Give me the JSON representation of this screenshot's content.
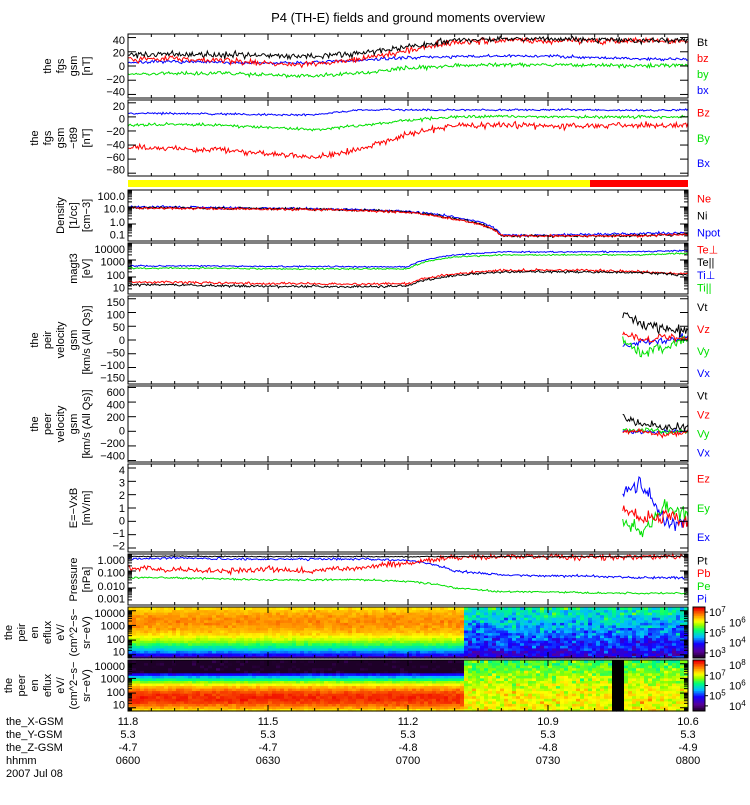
{
  "title": "P4 (TH-E) fields and ground moments overview",
  "colors": {
    "black": "#000000",
    "red": "#ff0000",
    "green": "#00e000",
    "blue": "#0000ff",
    "yellow": "#ffff00"
  },
  "xaxis": {
    "row_labels": [
      "the_X-GSM",
      "the_Y-GSM",
      "the_Z-GSM",
      "hhmm"
    ],
    "date": "2007 Jul 08",
    "ticks": [
      {
        "t": 0,
        "values": [
          "11.8",
          "5.3",
          "-4.7",
          "0600"
        ]
      },
      {
        "t": 30,
        "values": [
          "11.5",
          "5.3",
          "-4.7",
          "0630"
        ]
      },
      {
        "t": 60,
        "values": [
          "11.2",
          "5.3",
          "-4.8",
          "0700"
        ]
      },
      {
        "t": 90,
        "values": [
          "10.9",
          "5.3",
          "-4.8",
          "0730"
        ]
      },
      {
        "t": 120,
        "values": [
          "10.6",
          "5.3",
          "-4.9",
          "0800"
        ]
      }
    ],
    "range_minutes": [
      0,
      120
    ]
  },
  "chart_data": [
    {
      "id": "p1",
      "type": "line",
      "ylabel": [
        "the",
        "fgs",
        "gsm",
        "[nT]"
      ],
      "scale": "linear",
      "ylim": [
        -45,
        45
      ],
      "yticks": [
        [
          40,
          "40"
        ],
        [
          20,
          "20"
        ],
        [
          0,
          "0"
        ],
        [
          -20,
          "−20"
        ],
        [
          -40,
          "−40"
        ]
      ],
      "x": [
        0,
        10,
        20,
        30,
        40,
        50,
        60,
        70,
        80,
        90,
        100,
        110,
        120
      ],
      "series": [
        {
          "name": "bx",
          "color": "#0000ff",
          "noise": 1.5,
          "values": [
            5,
            6,
            5,
            4,
            5,
            8,
            12,
            13,
            14,
            14,
            12,
            10,
            10
          ]
        },
        {
          "name": "by",
          "color": "#00e000",
          "noise": 2,
          "values": [
            -12,
            -10,
            -10,
            -12,
            -14,
            -10,
            -3,
            1,
            2,
            2,
            1,
            0,
            2
          ]
        },
        {
          "name": "bz",
          "color": "#ff0000",
          "noise": 3,
          "values": [
            10,
            10,
            8,
            4,
            2,
            10,
            22,
            34,
            36,
            36,
            35,
            36,
            35
          ]
        },
        {
          "name": "Bt",
          "color": "#000000",
          "noise": 3,
          "values": [
            15,
            17,
            16,
            15,
            14,
            18,
            27,
            36,
            38,
            38,
            37,
            36,
            37
          ]
        }
      ],
      "legend": [
        "Bt",
        "bz",
        "by",
        "bx"
      ]
    },
    {
      "id": "p2",
      "type": "line",
      "ylabel": [
        "the",
        "fgs",
        "gsm",
        "−t89",
        "[nT]"
      ],
      "scale": "linear",
      "ylim": [
        -84,
        24
      ],
      "yticks": [
        [
          20,
          "20"
        ],
        [
          0,
          "0"
        ],
        [
          -20,
          "−20"
        ],
        [
          -40,
          "−40"
        ],
        [
          -60,
          "−60"
        ],
        [
          -80,
          "−80"
        ]
      ],
      "x": [
        0,
        10,
        20,
        30,
        40,
        50,
        60,
        70,
        80,
        90,
        100,
        110,
        120
      ],
      "series": [
        {
          "name": "Bz",
          "color": "#ff0000",
          "noise": 3,
          "values": [
            -42,
            -45,
            -47,
            -52,
            -58,
            -45,
            -25,
            -12,
            -12,
            -13,
            -13,
            -12,
            -12
          ]
        },
        {
          "name": "By",
          "color": "#00e000",
          "noise": 1.5,
          "values": [
            -12,
            -10,
            -12,
            -15,
            -18,
            -12,
            -5,
            0,
            1,
            0,
            0,
            0,
            0
          ]
        },
        {
          "name": "Bx",
          "color": "#0000ff",
          "noise": 1,
          "values": [
            5,
            5,
            4,
            3,
            3,
            10,
            10,
            10,
            10,
            10,
            10,
            9,
            10
          ]
        }
      ],
      "legend": [
        "Bz",
        "By",
        "Bx"
      ]
    },
    {
      "id": "bar",
      "type": "state-bar",
      "segments": [
        {
          "from": 0,
          "to": 99,
          "color": "#ffff00"
        },
        {
          "from": 99,
          "to": 120,
          "color": "#ff0000"
        }
      ]
    },
    {
      "id": "p4",
      "type": "line",
      "ylabel": [
        "Density",
        "[1/cc]",
        "[cm−3]"
      ],
      "scale": "log",
      "ylim": [
        0.1,
        100
      ],
      "yticks": [
        [
          100,
          "100.0"
        ],
        [
          10,
          "10.0"
        ],
        [
          1,
          "1.0"
        ],
        [
          0.1,
          "0.1"
        ]
      ],
      "x": [
        0,
        10,
        20,
        30,
        40,
        50,
        60,
        70,
        80,
        90,
        100,
        110,
        120
      ],
      "series": [
        {
          "name": "Npot",
          "color": "#0000ff",
          "noise": 0.05,
          "values": [
            10,
            10,
            9,
            8.5,
            8,
            7,
            5.5,
            2.5,
            0.22,
            0.22,
            0.25,
            0.28,
            0.3
          ]
        },
        {
          "name": "Ni",
          "color": "#000000",
          "noise": 0.05,
          "values": [
            9,
            9,
            8.5,
            8,
            7.5,
            6.5,
            5,
            2,
            0.2,
            0.2,
            0.2,
            0.2,
            0.25
          ]
        },
        {
          "name": "Ne",
          "color": "#ff0000",
          "noise": 0.05,
          "values": [
            8.5,
            8.5,
            8,
            7.5,
            7,
            6,
            4.8,
            1.8,
            0.2,
            0.2,
            0.2,
            0.2,
            0.25
          ]
        }
      ],
      "legend": [
        "Ne",
        "Ni",
        "Npot"
      ]
    },
    {
      "id": "p5",
      "type": "line",
      "ylabel": [
        "magt3",
        "[eV]"
      ],
      "scale": "log",
      "ylim": [
        10,
        10000
      ],
      "yticks": [
        [
          10000,
          "10000"
        ],
        [
          1000,
          "1000"
        ],
        [
          100,
          "100"
        ],
        [
          10,
          "10"
        ]
      ],
      "x": [
        0,
        10,
        20,
        30,
        40,
        50,
        60,
        70,
        80,
        90,
        100,
        110,
        120
      ],
      "series": [
        {
          "name": "Ti⊥",
          "color": "#0000ff",
          "noise": 0.03,
          "values": [
            450,
            450,
            450,
            420,
            420,
            400,
            400,
            2000,
            3000,
            3000,
            3000,
            3200,
            3500
          ]
        },
        {
          "name": "Ti||",
          "color": "#00e000",
          "noise": 0.03,
          "values": [
            330,
            330,
            330,
            300,
            300,
            300,
            300,
            1500,
            2000,
            2000,
            2000,
            2000,
            2500
          ]
        },
        {
          "name": "Te⊥",
          "color": "#ff0000",
          "noise": 0.05,
          "values": [
            50,
            50,
            45,
            40,
            40,
            38,
            40,
            150,
            250,
            250,
            250,
            200,
            150
          ]
        },
        {
          "name": "Te||",
          "color": "#000000",
          "noise": 0.05,
          "values": [
            35,
            35,
            30,
            28,
            28,
            26,
            30,
            120,
            200,
            200,
            200,
            180,
            130
          ]
        }
      ],
      "legend": [
        "Te⊥",
        "Te||",
        "Ti⊥",
        "Ti||"
      ]
    },
    {
      "id": "p6",
      "type": "line",
      "ylabel": [
        "the",
        "peir",
        "velocity",
        "gsm",
        "[km/s (All Qs)]"
      ],
      "scale": "linear",
      "ylim": [
        -160,
        160
      ],
      "yticks": [
        [
          150,
          "150"
        ],
        [
          100,
          "100"
        ],
        [
          50,
          "50"
        ],
        [
          0,
          "0"
        ],
        [
          -50,
          "−50"
        ],
        [
          -100,
          "−100"
        ],
        [
          -150,
          "−150"
        ]
      ],
      "x": [
        106,
        110,
        115,
        120
      ],
      "series": [
        {
          "name": "Vx",
          "color": "#0000ff",
          "noise": 10,
          "values": [
            -20,
            -10,
            0,
            10
          ]
        },
        {
          "name": "Vy",
          "color": "#00e000",
          "noise": 15,
          "values": [
            0,
            -50,
            -20,
            0
          ]
        },
        {
          "name": "Vz",
          "color": "#ff0000",
          "noise": 10,
          "values": [
            20,
            0,
            10,
            5
          ]
        },
        {
          "name": "Vt",
          "color": "#000000",
          "noise": 15,
          "values": [
            100,
            60,
            40,
            30
          ]
        }
      ],
      "legend": [
        "Vt",
        "Vz",
        "Vy",
        "Vx"
      ]
    },
    {
      "id": "p7",
      "type": "line",
      "ylabel": [
        "the",
        "peer",
        "velocity",
        "gsm",
        "[km/s (All Qs)]"
      ],
      "scale": "linear",
      "ylim": [
        -420,
        620
      ],
      "yticks": [
        [
          600,
          "600"
        ],
        [
          400,
          "400"
        ],
        [
          200,
          "200"
        ],
        [
          0,
          "0"
        ],
        [
          -200,
          "−200"
        ],
        [
          -400,
          "−400"
        ]
      ],
      "x": [
        106,
        110,
        115,
        120
      ],
      "series": [
        {
          "name": "Vx",
          "color": "#0000ff",
          "noise": 20,
          "values": [
            0,
            -20,
            0,
            0
          ]
        },
        {
          "name": "Vy",
          "color": "#00e000",
          "noise": 25,
          "values": [
            0,
            20,
            0,
            0
          ]
        },
        {
          "name": "Vz",
          "color": "#ff0000",
          "noise": 25,
          "values": [
            0,
            0,
            -50,
            0
          ]
        },
        {
          "name": "Vt",
          "color": "#000000",
          "noise": 40,
          "values": [
            200,
            100,
            50,
            60
          ]
        }
      ],
      "legend": [
        "Vt",
        "Vz",
        "Vy",
        "Vx"
      ]
    },
    {
      "id": "p8",
      "type": "line",
      "ylabel": [
        "E=−VxB",
        "[mV/m]"
      ],
      "scale": "linear",
      "ylim": [
        -2.3,
        4.3
      ],
      "yticks": [
        [
          4,
          "4"
        ],
        [
          3,
          "3"
        ],
        [
          2,
          "2"
        ],
        [
          1,
          "1"
        ],
        [
          0,
          "0"
        ],
        [
          -1,
          "−1"
        ],
        [
          -2,
          "−2"
        ]
      ],
      "x": [
        106,
        110,
        115,
        120
      ],
      "series": [
        {
          "name": "Ex",
          "color": "#0000ff",
          "noise": 0.4,
          "values": [
            2,
            3,
            0,
            0
          ]
        },
        {
          "name": "Ey",
          "color": "#00e000",
          "noise": 0.4,
          "values": [
            0,
            -1,
            1,
            0.5
          ]
        },
        {
          "name": "Ez",
          "color": "#ff0000",
          "noise": 0.4,
          "values": [
            1,
            0,
            0.5,
            0
          ]
        }
      ],
      "legend": [
        "Ez",
        "Ey",
        "Ex"
      ]
    },
    {
      "id": "p9",
      "type": "line",
      "ylabel": [
        "Pressure",
        "[nPa]"
      ],
      "scale": "log",
      "ylim": [
        0.001,
        1
      ],
      "yticks": [
        [
          1,
          "1.000"
        ],
        [
          0.1,
          "0.100"
        ],
        [
          0.01,
          "0.010"
        ],
        [
          0.001,
          "0.001"
        ]
      ],
      "x": [
        0,
        10,
        20,
        30,
        40,
        50,
        60,
        70,
        80,
        90,
        100,
        110,
        120
      ],
      "series": [
        {
          "name": "Pe",
          "color": "#00e000",
          "noise": 0.04,
          "values": [
            0.04,
            0.04,
            0.035,
            0.03,
            0.03,
            0.03,
            0.025,
            0.01,
            0.006,
            0.006,
            0.005,
            0.005,
            0.005
          ]
        },
        {
          "name": "Pi",
          "color": "#0000ff",
          "noise": 0.05,
          "values": [
            0.5,
            0.6,
            0.5,
            0.5,
            0.5,
            0.5,
            0.4,
            0.1,
            0.06,
            0.05,
            0.05,
            0.04,
            0.04
          ]
        },
        {
          "name": "Pb",
          "color": "#ff0000",
          "noise": 0.12,
          "values": [
            0.15,
            0.12,
            0.1,
            0.12,
            0.1,
            0.15,
            0.3,
            0.6,
            0.7,
            0.7,
            0.7,
            0.7,
            0.7
          ]
        },
        {
          "name": "Pt",
          "color": "#000000",
          "noise": 0.02,
          "values": [
            0.7,
            0.75,
            0.7,
            0.7,
            0.7,
            0.7,
            0.7,
            0.7,
            0.7,
            0.7,
            0.7,
            0.7,
            0.75
          ]
        }
      ],
      "legend": [
        "Pt",
        "Pb",
        "Pe",
        "Pi"
      ]
    },
    {
      "id": "s1",
      "type": "heatmap",
      "ylabel": [
        "the",
        "peir",
        "en",
        "eflux",
        "eV/",
        "(cm^2−s−",
        "sr−eV)"
      ],
      "scale": "log",
      "ylim": [
        6,
        18000
      ],
      "yticks": [
        [
          10000,
          "10000"
        ],
        [
          1000,
          "1000"
        ],
        [
          100,
          "100"
        ],
        [
          10,
          "10"
        ]
      ],
      "colorbar": {
        "ticks": [
          "3",
          "4",
          "5",
          "6",
          "7"
        ],
        "range_log": [
          2.5,
          7.5
        ]
      },
      "regimes": [
        {
          "from": 0,
          "to": 72,
          "peak_energy": 2000,
          "peak_log_flux": 6.8
        },
        {
          "from": 72,
          "to": 120,
          "peak_energy": 10000,
          "peak_log_flux": 5.0
        }
      ]
    },
    {
      "id": "s2",
      "type": "heatmap",
      "ylabel": [
        "the",
        "peer",
        "en",
        "eflux",
        "eV/",
        "(cm^2−s−",
        "sr−eV)"
      ],
      "scale": "log",
      "ylim": [
        6,
        18000
      ],
      "yticks": [
        [
          10000,
          "10000"
        ],
        [
          1000,
          "1000"
        ],
        [
          100,
          "100"
        ],
        [
          10,
          "10"
        ]
      ],
      "colorbar": {
        "ticks": [
          "4",
          "5",
          "6",
          "7",
          "8"
        ],
        "range_log": [
          3.5,
          8.5
        ]
      },
      "regimes": [
        {
          "from": 0,
          "to": 72,
          "peak_energy": 50,
          "peak_log_flux": 8.3
        },
        {
          "from": 72,
          "to": 120,
          "peak_energy": 100,
          "peak_log_flux": 7.2
        }
      ],
      "gaps": [
        {
          "from": 103.5,
          "to": 105.5
        }
      ]
    }
  ]
}
